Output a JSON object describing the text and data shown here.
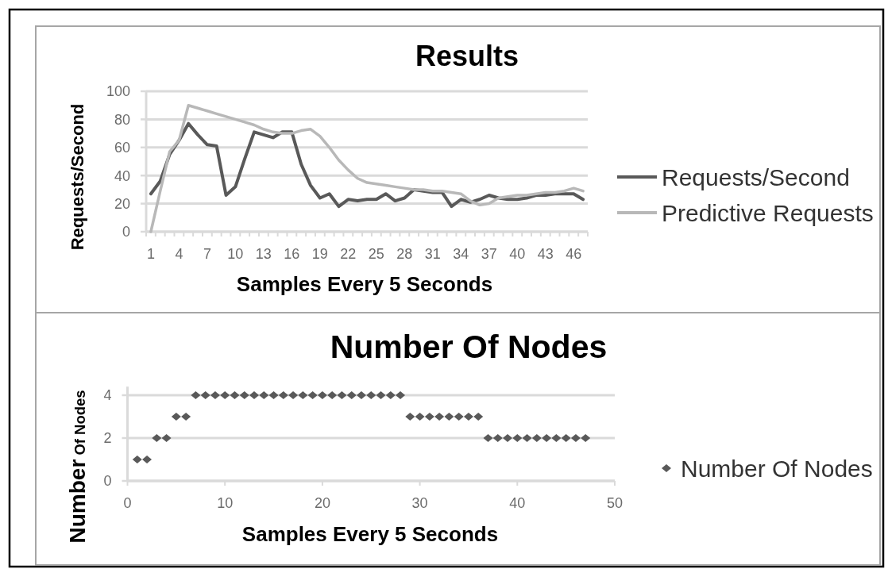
{
  "chart_data": [
    {
      "type": "line",
      "title": "Results",
      "xlabel": "Samples Every 5 Seconds",
      "ylabel": "Requests/Second",
      "categories": [
        "1",
        null,
        null,
        "4",
        null,
        null,
        "7",
        null,
        null,
        "10",
        null,
        null,
        "13",
        null,
        null,
        "16",
        null,
        null,
        "19",
        null,
        null,
        "22",
        null,
        null,
        "25",
        null,
        null,
        "28",
        null,
        null,
        "31",
        null,
        null,
        "34",
        null,
        null,
        "37",
        null,
        null,
        "40",
        null,
        null,
        "43",
        null,
        null,
        "46",
        null
      ],
      "series": [
        {
          "name": "Requests/Second",
          "color": "#595959",
          "values": [
            27,
            36,
            55,
            65,
            77,
            69,
            62,
            61,
            26,
            32,
            52,
            71,
            69,
            67,
            71,
            71,
            48,
            33,
            24,
            27,
            18,
            23,
            22,
            23,
            23,
            27,
            22,
            24,
            30,
            29,
            28,
            28,
            18,
            23,
            21,
            23,
            26,
            24,
            23,
            23,
            24,
            26,
            26,
            27,
            27,
            27,
            23
          ]
        },
        {
          "name": "Predictive Requests",
          "color": "#b8b8b8",
          "values": [
            0,
            29,
            57,
            65,
            90,
            88,
            86,
            84,
            82,
            80,
            78,
            76,
            73,
            71,
            70,
            70,
            72,
            73,
            68,
            60,
            51,
            44,
            38,
            35,
            34,
            33,
            32,
            31,
            30,
            30,
            29,
            29,
            28,
            27,
            22,
            19,
            20,
            24,
            25,
            26,
            26,
            27,
            28,
            28,
            29,
            31,
            29
          ]
        }
      ],
      "ylim": [
        0,
        100
      ],
      "yticks": [
        0,
        20,
        40,
        60,
        80,
        100
      ],
      "grid": "y",
      "legend": "right"
    },
    {
      "type": "scatter",
      "title": "Number Of Nodes",
      "xlabel": "Samples Every 5 Seconds",
      "ylabel": "Number Of Nodes",
      "x": [
        1,
        2,
        3,
        4,
        5,
        6,
        7,
        8,
        9,
        10,
        11,
        12,
        13,
        14,
        15,
        16,
        17,
        18,
        19,
        20,
        21,
        22,
        23,
        24,
        25,
        26,
        27,
        28,
        29,
        30,
        31,
        32,
        33,
        34,
        35,
        36,
        37,
        38,
        39,
        40,
        41,
        42,
        43,
        44,
        45,
        46,
        47
      ],
      "series": [
        {
          "name": "Number Of Nodes",
          "color": "#595959",
          "values": [
            1,
            1,
            2,
            2,
            3,
            3,
            4,
            4,
            4,
            4,
            4,
            4,
            4,
            4,
            4,
            4,
            4,
            4,
            4,
            4,
            4,
            4,
            4,
            4,
            4,
            4,
            4,
            4,
            3,
            3,
            3,
            3,
            3,
            3,
            3,
            3,
            2,
            2,
            2,
            2,
            2,
            2,
            2,
            2,
            2,
            2,
            2
          ]
        }
      ],
      "xlim": [
        0,
        50
      ],
      "xticks": [
        0,
        10,
        20,
        30,
        40,
        50
      ],
      "ylim": [
        0,
        4.4
      ],
      "yticks": [
        0,
        2,
        4
      ],
      "grid": "y",
      "legend": "right",
      "marker": "diamond"
    }
  ]
}
